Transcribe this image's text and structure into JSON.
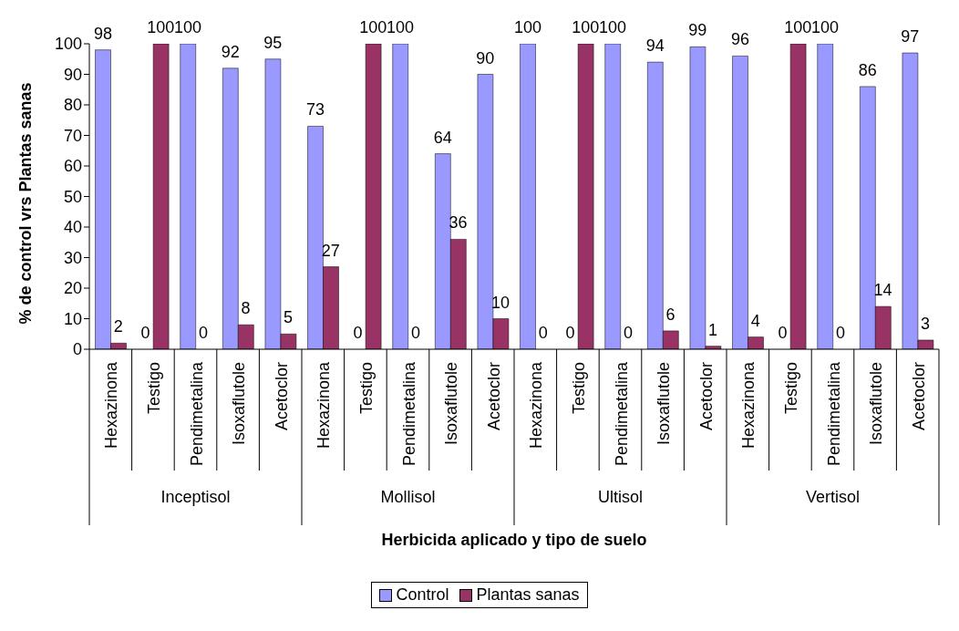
{
  "chart_data": {
    "type": "bar",
    "xlabel": "Herbicida aplicado y tipo de suelo",
    "ylabel": "% de control vrs Plantas sanas",
    "categories": [
      "Hexazinona",
      "Testigo",
      "Pendimetalina",
      "Isoxaflutole",
      "Acetoclor",
      "Hexazinona",
      "Testigo",
      "Pendimetalina",
      "Isoxaflutole",
      "Acetoclor",
      "Hexazinona",
      "Testigo",
      "Pendimetalina",
      "Isoxaflutole",
      "Acetoclor",
      "Hexazinona",
      "Testigo",
      "Pendimetalina",
      "Isoxaflutole",
      "Acetoclor"
    ],
    "annotations": [
      "Inceptisol",
      "Mollisol",
      "Ultisol",
      "Vertisol"
    ],
    "series": [
      {
        "name": "Control",
        "color": "#9999ff",
        "values": [
          98,
          0,
          100,
          92,
          95,
          73,
          0,
          100,
          64,
          90,
          100,
          0,
          100,
          94,
          99,
          96,
          0,
          100,
          86,
          97
        ]
      },
      {
        "name": "Plantas sanas",
        "color": "#993366",
        "values": [
          2,
          100,
          0,
          8,
          5,
          27,
          100,
          0,
          36,
          10,
          0,
          100,
          0,
          6,
          1,
          4,
          100,
          0,
          14,
          3
        ]
      }
    ],
    "ylim": [
      0,
      100
    ],
    "yticks": [
      0,
      10,
      20,
      30,
      40,
      50,
      60,
      70,
      80,
      90,
      100
    ],
    "grid": false,
    "data_labels": true,
    "legend": "bottom"
  }
}
